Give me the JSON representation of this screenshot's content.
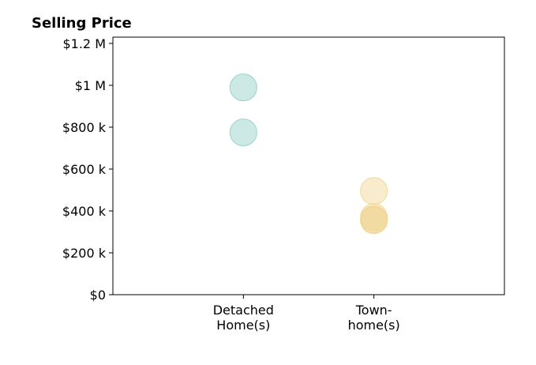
{
  "chart_data": {
    "type": "scatter",
    "title": "Selling Price",
    "xlabel": "",
    "ylabel": "",
    "categories": [
      [
        "Detached",
        "Home(s)"
      ],
      [
        "Town-",
        "home(s)"
      ]
    ],
    "xlim": [
      0,
      3
    ],
    "ylim": [
      0,
      1230000
    ],
    "yticks": [
      0,
      200000,
      400000,
      600000,
      800000,
      1000000,
      1200000
    ],
    "ytick_labels": [
      "$0",
      "$200 k",
      "$400 k",
      "$600 k",
      "$800 k",
      "$1 M",
      "$1.2 M"
    ],
    "grid": false,
    "series": [
      {
        "category_index": 0,
        "color": "#8fcfc7",
        "values": [
          990000,
          775000
        ]
      },
      {
        "category_index": 1,
        "color": "#f0d590",
        "values": [
          495000,
          370000,
          360000,
          355000
        ]
      }
    ]
  }
}
